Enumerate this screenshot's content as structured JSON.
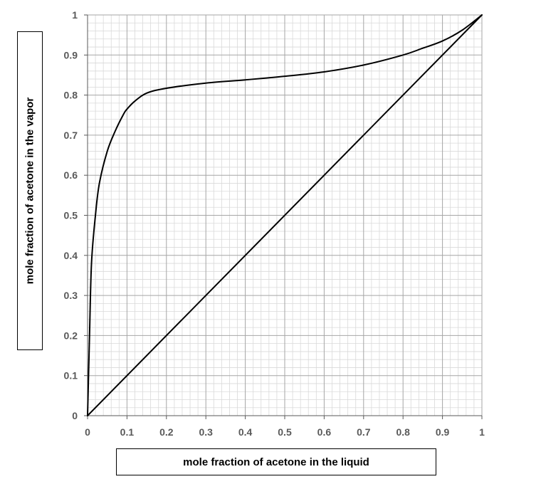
{
  "chart_data": {
    "type": "line",
    "title": "",
    "xlabel": "mole fraction of acetone in the liquid",
    "ylabel": "mole fraction of acetone in the vapor",
    "xlim": [
      0,
      1
    ],
    "ylim": [
      0,
      1
    ],
    "x_ticks": [
      "0",
      "0.1",
      "0.2",
      "0.3",
      "0.4",
      "0.5",
      "0.6",
      "0.7",
      "0.8",
      "0.9",
      "1"
    ],
    "y_ticks": [
      "0",
      "0.1",
      "0.2",
      "0.3",
      "0.4",
      "0.5",
      "0.6",
      "0.7",
      "0.8",
      "0.9",
      "1"
    ],
    "grid": true,
    "series": [
      {
        "color": "#000000",
        "x": [
          0,
          0.005,
          0.01,
          0.02,
          0.03,
          0.05,
          0.07,
          0.09,
          0.1,
          0.12,
          0.15,
          0.2,
          0.3,
          0.4,
          0.5,
          0.6,
          0.7,
          0.8,
          0.85,
          0.9,
          0.95,
          1.0
        ],
        "y": [
          0,
          0.2,
          0.38,
          0.5,
          0.58,
          0.66,
          0.71,
          0.75,
          0.765,
          0.785,
          0.805,
          0.817,
          0.83,
          0.838,
          0.847,
          0.858,
          0.875,
          0.9,
          0.917,
          0.935,
          0.962,
          1.0
        ]
      },
      {
        "color": "#000000",
        "x": [
          0,
          1
        ],
        "y": [
          0,
          1
        ]
      }
    ]
  }
}
